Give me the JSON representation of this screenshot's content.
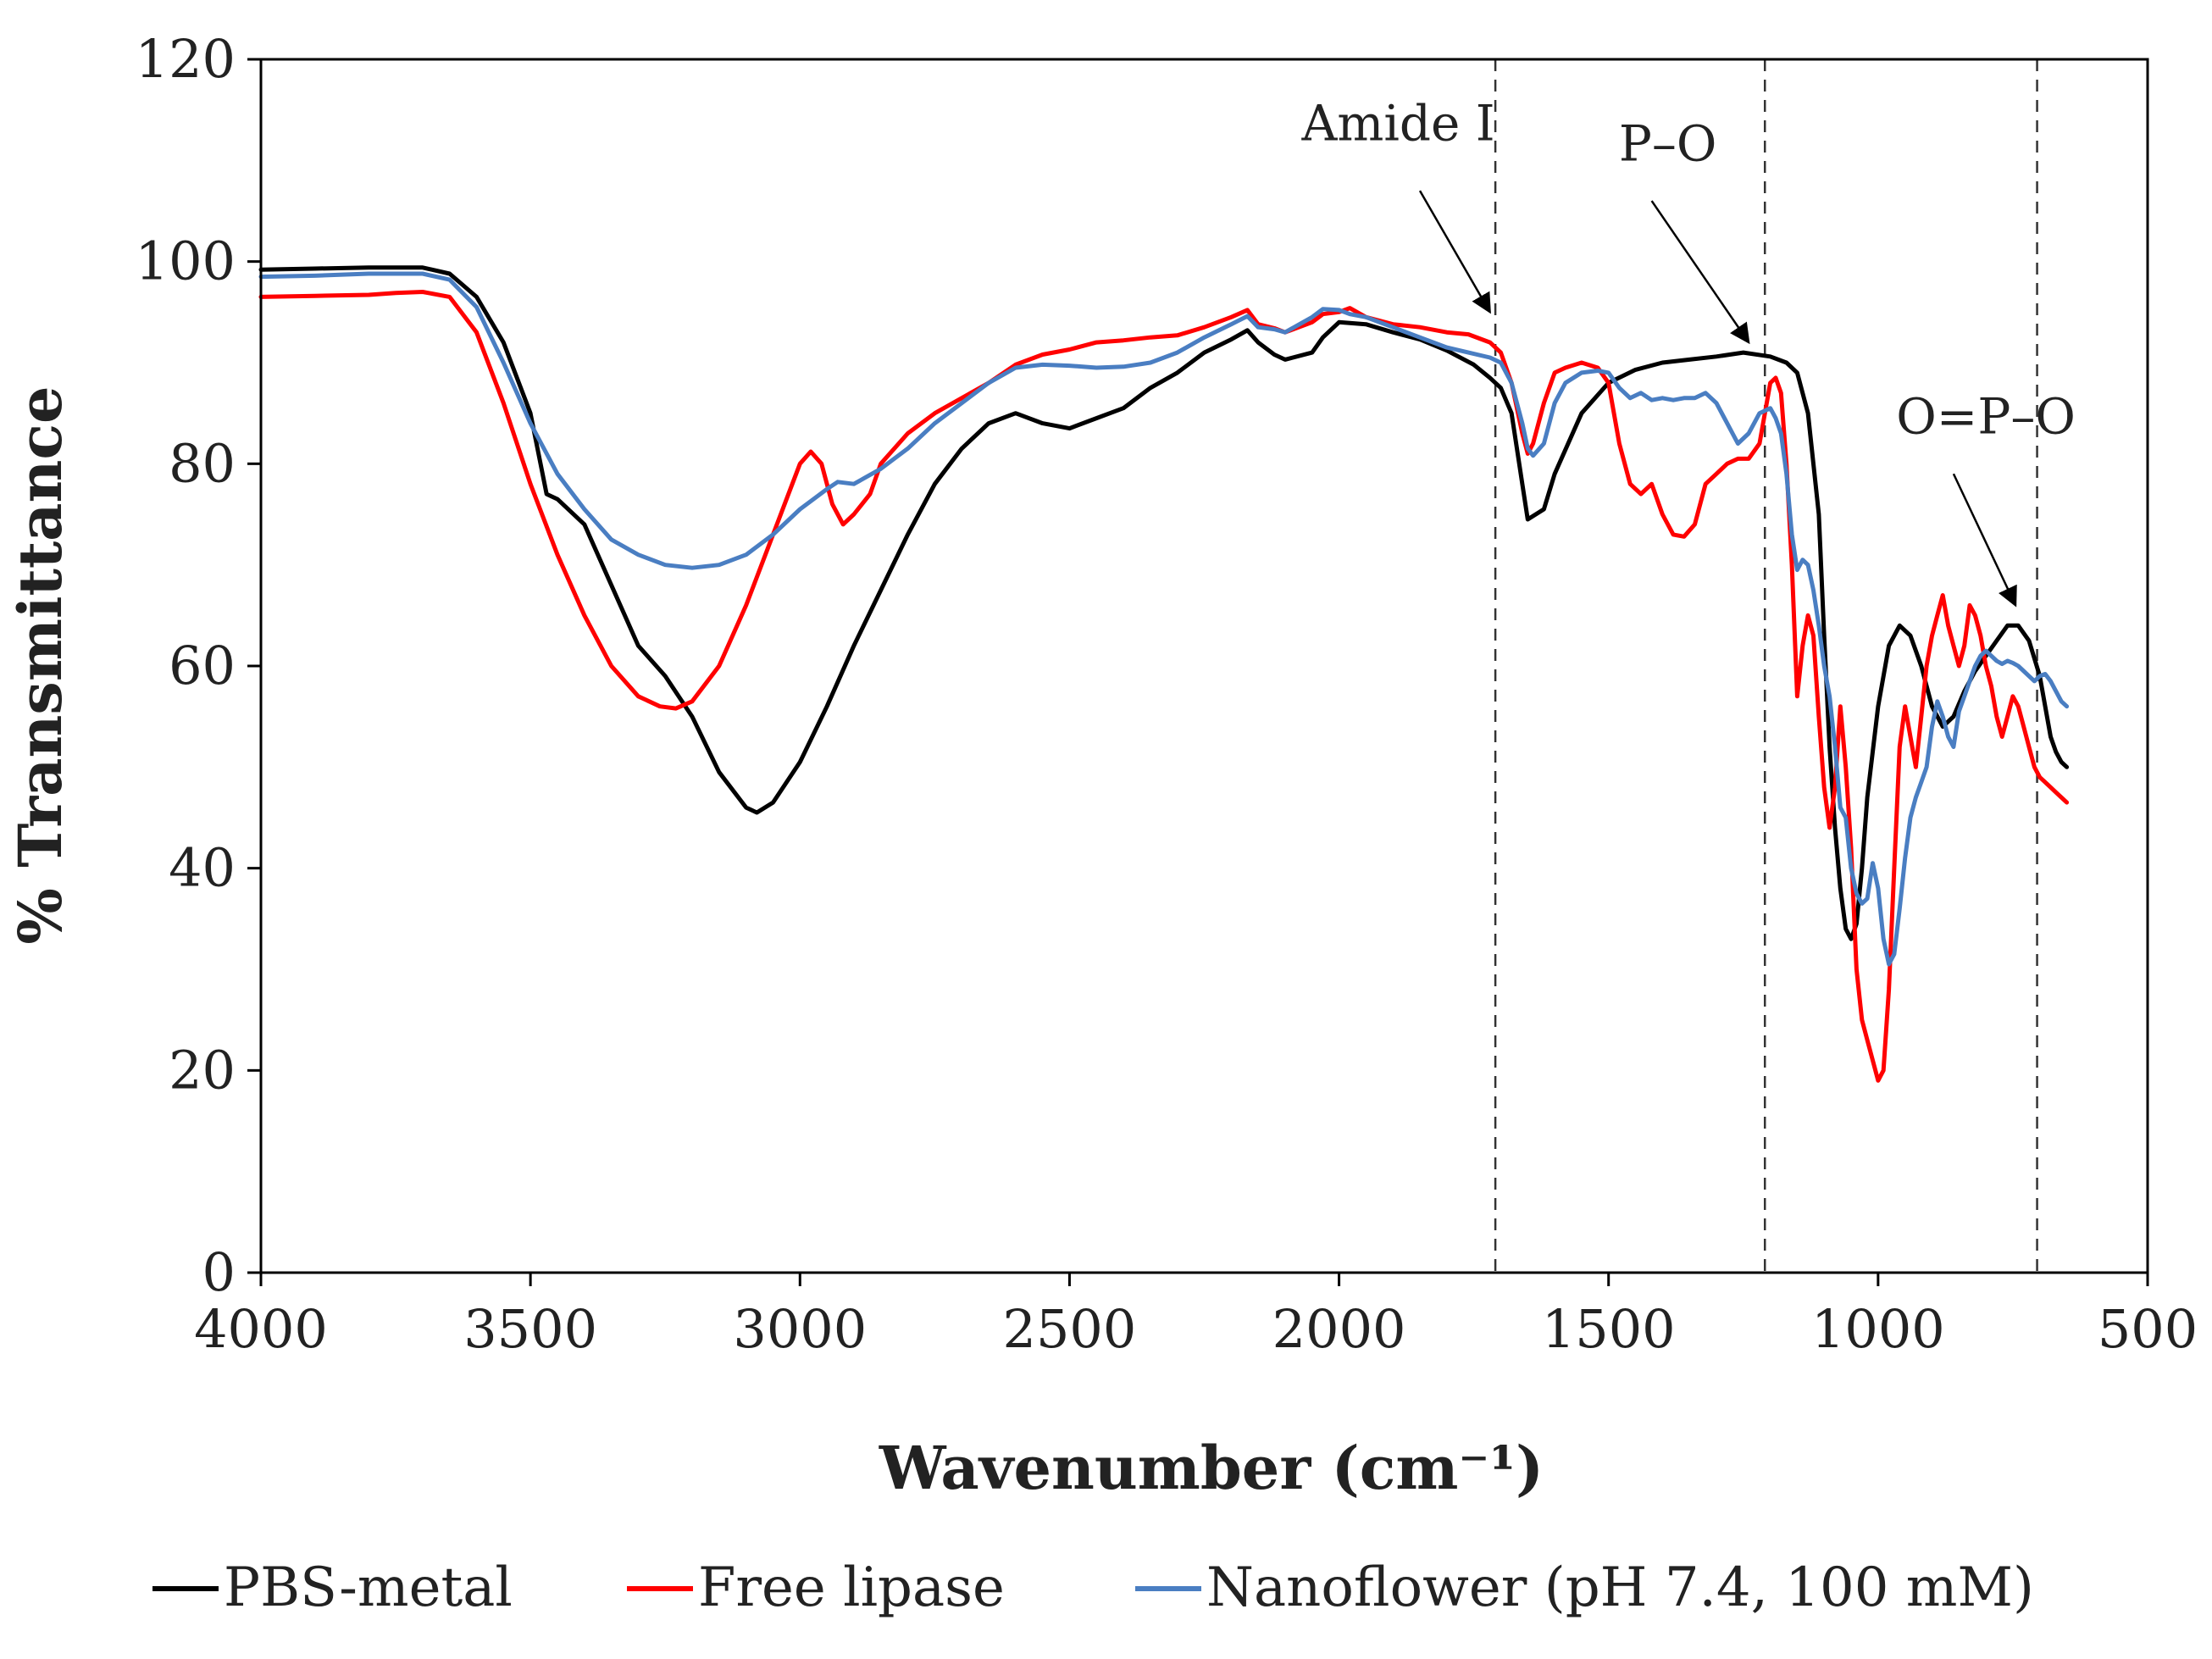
{
  "chart_data": {
    "type": "line",
    "title": "",
    "xlabel": "Wavenumber (cm⁻¹)",
    "ylabel": "% Transmittance",
    "xlim": [
      4000,
      500
    ],
    "ylim": [
      0,
      120
    ],
    "x_ticks": [
      "4000",
      "3500",
      "3000",
      "2500",
      "2000",
      "1500",
      "1000",
      "500"
    ],
    "y_ticks": [
      "0",
      "20",
      "40",
      "60",
      "80",
      "100",
      "120"
    ],
    "x_tick_values": [
      4000,
      3500,
      3000,
      2500,
      2000,
      1500,
      1000,
      500
    ],
    "y_tick_values": [
      0,
      20,
      40,
      60,
      80,
      100,
      120
    ],
    "legend_position": "bottom",
    "reference_lines": [
      1710,
      1210,
      705
    ],
    "annotations": [
      {
        "text": "Amide I",
        "label_at": [
          1890,
          112
        ],
        "arrow_from": [
          1850,
          107
        ],
        "arrow_to": [
          1720,
          95
        ]
      },
      {
        "text": "P–O",
        "label_at": [
          1390,
          110
        ],
        "arrow_from": [
          1420,
          106
        ],
        "arrow_to": [
          1240,
          92
        ]
      },
      {
        "text": "O=P–O",
        "label_at": [
          800,
          83
        ],
        "arrow_from": [
          860,
          79
        ],
        "arrow_to": [
          745,
          66
        ]
      }
    ],
    "series": [
      {
        "name": "PBS-metal",
        "color": "#000000",
        "x": [
          4000,
          3900,
          3800,
          3700,
          3650,
          3600,
          3550,
          3500,
          3470,
          3450,
          3400,
          3350,
          3300,
          3250,
          3200,
          3150,
          3100,
          3080,
          3050,
          3000,
          2950,
          2900,
          2850,
          2800,
          2750,
          2700,
          2650,
          2600,
          2550,
          2500,
          2450,
          2400,
          2350,
          2300,
          2250,
          2200,
          2170,
          2150,
          2120,
          2100,
          2050,
          2030,
          2000,
          1950,
          1900,
          1850,
          1800,
          1750,
          1720,
          1700,
          1680,
          1660,
          1650,
          1620,
          1600,
          1550,
          1500,
          1450,
          1400,
          1350,
          1300,
          1250,
          1200,
          1170,
          1150,
          1130,
          1110,
          1100,
          1090,
          1080,
          1070,
          1060,
          1050,
          1040,
          1030,
          1020,
          1000,
          980,
          960,
          940,
          920,
          900,
          880,
          860,
          840,
          820,
          800,
          780,
          760,
          740,
          720,
          700,
          690,
          680,
          670,
          660,
          650
        ],
        "y": [
          99.2,
          99.3,
          99.4,
          99.4,
          98.8,
          96.5,
          92,
          85,
          77,
          76.5,
          74,
          68,
          62,
          59,
          55,
          49.5,
          46,
          45.5,
          46.5,
          50.5,
          56,
          62,
          67.5,
          73,
          78,
          81.5,
          84,
          85,
          84,
          83.5,
          84.5,
          85.5,
          87.5,
          89,
          91,
          92.3,
          93.2,
          92,
          90.8,
          90.3,
          91,
          92.5,
          94,
          93.8,
          93,
          92.3,
          91.2,
          89.8,
          88.5,
          87.5,
          85,
          78,
          74.5,
          75.5,
          79,
          85,
          88,
          89.3,
          90,
          90.3,
          90.6,
          91,
          90.6,
          90,
          89,
          85,
          75,
          63,
          52,
          44,
          38,
          34,
          33,
          34.5,
          40,
          47,
          56,
          62,
          64,
          63,
          60,
          56,
          54,
          55,
          57.5,
          59.5,
          61,
          62.5,
          64,
          64,
          62.5,
          59,
          56,
          53,
          51.5,
          50.5,
          50
        ]
      },
      {
        "name": "Free lipase",
        "color": "#ff0000",
        "x": [
          4000,
          3900,
          3800,
          3750,
          3700,
          3650,
          3600,
          3550,
          3500,
          3450,
          3400,
          3350,
          3300,
          3260,
          3230,
          3200,
          3150,
          3100,
          3050,
          3000,
          2980,
          2960,
          2940,
          2920,
          2900,
          2870,
          2850,
          2800,
          2750,
          2700,
          2650,
          2600,
          2550,
          2500,
          2450,
          2400,
          2350,
          2300,
          2250,
          2200,
          2170,
          2150,
          2120,
          2100,
          2050,
          2030,
          2000,
          1980,
          1950,
          1900,
          1850,
          1800,
          1760,
          1720,
          1700,
          1680,
          1660,
          1650,
          1640,
          1620,
          1600,
          1580,
          1550,
          1520,
          1500,
          1480,
          1460,
          1440,
          1420,
          1400,
          1380,
          1360,
          1340,
          1320,
          1300,
          1280,
          1260,
          1240,
          1220,
          1200,
          1190,
          1180,
          1170,
          1160,
          1150,
          1140,
          1130,
          1120,
          1110,
          1100,
          1090,
          1080,
          1070,
          1060,
          1050,
          1040,
          1030,
          1020,
          1010,
          1000,
          990,
          980,
          970,
          960,
          950,
          940,
          930,
          920,
          910,
          900,
          890,
          880,
          870,
          860,
          850,
          840,
          830,
          820,
          810,
          800,
          790,
          780,
          770,
          760,
          750,
          740,
          730,
          720,
          710,
          700,
          690,
          680,
          670,
          660,
          650
        ],
        "y": [
          96.5,
          96.6,
          96.7,
          96.9,
          97,
          96.5,
          93,
          86,
          78,
          71,
          65,
          60,
          57,
          56,
          55.8,
          56.5,
          60,
          66,
          73,
          80,
          81.2,
          80,
          76,
          74,
          75,
          77,
          80,
          83,
          85,
          86.5,
          88,
          89.8,
          90.8,
          91.3,
          92,
          92.2,
          92.5,
          92.7,
          93.5,
          94.5,
          95.2,
          93.8,
          93.4,
          93,
          94,
          94.8,
          95,
          95.4,
          94.5,
          93.8,
          93.5,
          93,
          92.8,
          92,
          91,
          88,
          83,
          81,
          82,
          86,
          89,
          89.5,
          90,
          89.5,
          88,
          82,
          78,
          77,
          78,
          75,
          73,
          72.8,
          74,
          78,
          79,
          80,
          80.5,
          80.5,
          82,
          88,
          88.5,
          87,
          80,
          70,
          57,
          62,
          65,
          63,
          55,
          48,
          44,
          48,
          56,
          50,
          42,
          30,
          25,
          23,
          21,
          19,
          20,
          28,
          40,
          52,
          56,
          53,
          50,
          55,
          60,
          63,
          65,
          67,
          64,
          62,
          60,
          62,
          66,
          65,
          63,
          60,
          58,
          55,
          53,
          55,
          57,
          56,
          54,
          52,
          50,
          49,
          48.5,
          48,
          47.5,
          47,
          46.5
        ]
      },
      {
        "name": "Nanoflower (pH 7.4, 100 mM)",
        "color": "#4a7ec2",
        "x": [
          4000,
          3900,
          3800,
          3700,
          3650,
          3600,
          3550,
          3500,
          3450,
          3400,
          3350,
          3300,
          3250,
          3200,
          3150,
          3100,
          3050,
          3000,
          2950,
          2930,
          2900,
          2850,
          2800,
          2750,
          2700,
          2650,
          2600,
          2550,
          2500,
          2450,
          2400,
          2350,
          2300,
          2250,
          2200,
          2170,
          2150,
          2120,
          2100,
          2050,
          2030,
          2000,
          1980,
          1950,
          1900,
          1850,
          1800,
          1760,
          1720,
          1700,
          1680,
          1660,
          1650,
          1640,
          1620,
          1600,
          1580,
          1550,
          1520,
          1500,
          1480,
          1460,
          1440,
          1420,
          1400,
          1380,
          1360,
          1340,
          1320,
          1300,
          1280,
          1260,
          1240,
          1220,
          1200,
          1190,
          1180,
          1170,
          1160,
          1150,
          1140,
          1130,
          1120,
          1110,
          1100,
          1090,
          1080,
          1070,
          1060,
          1050,
          1040,
          1030,
          1020,
          1010,
          1000,
          990,
          980,
          970,
          960,
          950,
          940,
          930,
          920,
          910,
          900,
          890,
          880,
          870,
          860,
          850,
          840,
          830,
          820,
          810,
          800,
          790,
          780,
          770,
          760,
          750,
          740,
          730,
          720,
          710,
          700,
          690,
          680,
          670,
          660,
          650
        ],
        "y": [
          98.5,
          98.6,
          98.8,
          98.8,
          98.2,
          95.5,
          90,
          84,
          79,
          75.5,
          72.5,
          71,
          70,
          69.7,
          70,
          71,
          73,
          75.5,
          77.5,
          78.2,
          78,
          79.5,
          81.5,
          84,
          86,
          88,
          89.5,
          89.8,
          89.7,
          89.5,
          89.6,
          90,
          91,
          92.5,
          93.8,
          94.6,
          93.5,
          93.3,
          93,
          94.5,
          95.3,
          95.2,
          94.8,
          94.5,
          93.5,
          92.5,
          91.5,
          91,
          90.5,
          90,
          88,
          84,
          81.5,
          80.8,
          82,
          86,
          88,
          89,
          89.2,
          89,
          87.5,
          86.5,
          87,
          86.3,
          86.5,
          86.3,
          86.5,
          86.5,
          87,
          86,
          84,
          82,
          83,
          85,
          85.5,
          84.5,
          83,
          79,
          73,
          69.5,
          70.5,
          70,
          67.5,
          64,
          60,
          57,
          52,
          46,
          45,
          40,
          37.5,
          36.5,
          37,
          40.5,
          38,
          33,
          30.5,
          31.5,
          36,
          41,
          45,
          47,
          48.5,
          50,
          54,
          56.5,
          55,
          53,
          52,
          55.5,
          57,
          58.5,
          60,
          61,
          61.5,
          61,
          60.5,
          60.2,
          60.5,
          60.3,
          60,
          59.5,
          59,
          58.5,
          59,
          59.2,
          58.5,
          57.5,
          56.5,
          56
        ]
      }
    ]
  }
}
